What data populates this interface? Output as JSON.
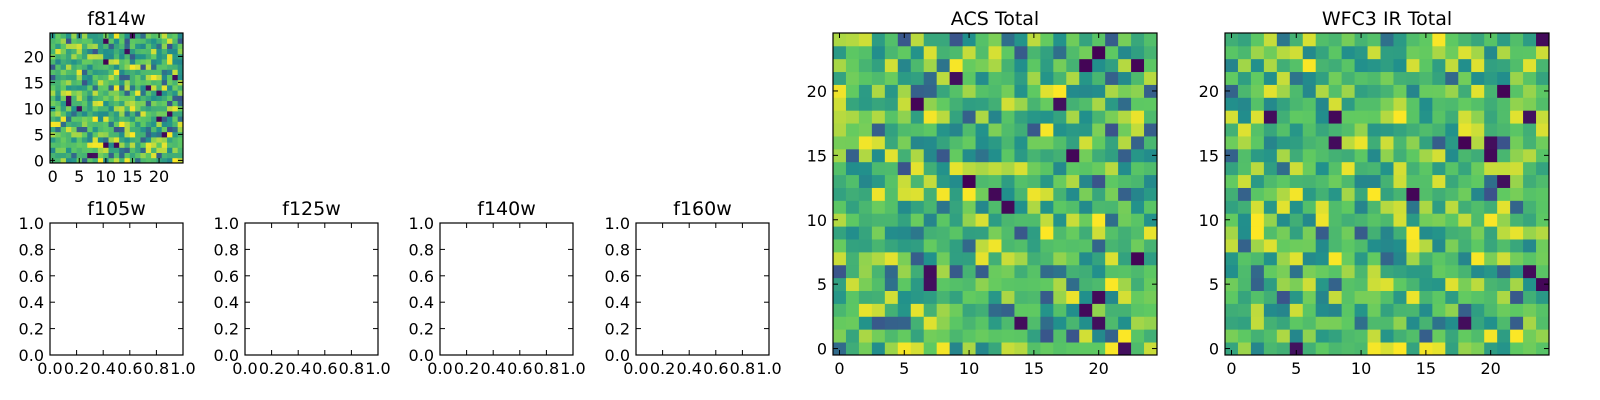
{
  "figure": {
    "background": "#ffffff"
  },
  "colormap": {
    "name": "viridis",
    "stops": [
      "#440154",
      "#3b528b",
      "#21918c",
      "#5ec962",
      "#fde725"
    ]
  },
  "chart_data": [
    {
      "id": "f814w",
      "type": "heatmap",
      "title": "f814w",
      "grid_size": 25,
      "x_ticks": [
        0,
        5,
        10,
        15,
        20
      ],
      "y_ticks": [
        0,
        5,
        10,
        15,
        20
      ],
      "xlim": [
        -0.5,
        24.5
      ],
      "ylim": [
        -0.5,
        24.5
      ],
      "values_note": ""
    },
    {
      "id": "f105w",
      "type": "empty",
      "title": "f105w",
      "x_ticks": [
        "0.0",
        "0.2",
        "0.4",
        "0.6",
        "0.8",
        "1.0"
      ],
      "y_ticks": [
        "0.0",
        "0.2",
        "0.4",
        "0.6",
        "0.8",
        "1.0"
      ],
      "xlim": [
        0,
        1
      ],
      "ylim": [
        0,
        1
      ]
    },
    {
      "id": "f125w",
      "type": "empty",
      "title": "f125w",
      "x_ticks": [
        "0.0",
        "0.2",
        "0.4",
        "0.6",
        "0.8",
        "1.0"
      ],
      "y_ticks": [
        "0.0",
        "0.2",
        "0.4",
        "0.6",
        "0.8",
        "1.0"
      ],
      "xlim": [
        0,
        1
      ],
      "ylim": [
        0,
        1
      ]
    },
    {
      "id": "f140w",
      "type": "empty",
      "title": "f140w",
      "x_ticks": [
        "0.0",
        "0.2",
        "0.4",
        "0.6",
        "0.8",
        "1.0"
      ],
      "y_ticks": [
        "0.0",
        "0.2",
        "0.4",
        "0.6",
        "0.8",
        "1.0"
      ],
      "xlim": [
        0,
        1
      ],
      "ylim": [
        0,
        1
      ]
    },
    {
      "id": "f160w",
      "type": "empty",
      "title": "f160w",
      "x_ticks": [
        "0.0",
        "0.2",
        "0.4",
        "0.6",
        "0.8",
        "1.0"
      ],
      "y_ticks": [
        "0.0",
        "0.2",
        "0.4",
        "0.6",
        "0.8",
        "1.0"
      ],
      "xlim": [
        0,
        1
      ],
      "ylim": [
        0,
        1
      ]
    },
    {
      "id": "acs_total",
      "type": "heatmap",
      "title": "ACS Total",
      "grid_size": 25,
      "x_ticks": [
        0,
        5,
        10,
        15,
        20
      ],
      "y_ticks": [
        0,
        5,
        10,
        15,
        20
      ],
      "xlim": [
        -0.5,
        24.5
      ],
      "ylim": [
        -0.5,
        24.5
      ]
    },
    {
      "id": "wfc3_ir_total",
      "type": "heatmap",
      "title": "WFC3 IR Total",
      "grid_size": 25,
      "x_ticks": [
        0,
        5,
        10,
        15,
        20
      ],
      "y_ticks": [
        0,
        5,
        10,
        15,
        20
      ],
      "xlim": [
        -0.5,
        24.5
      ],
      "ylim": [
        -0.5,
        24.5
      ]
    }
  ]
}
